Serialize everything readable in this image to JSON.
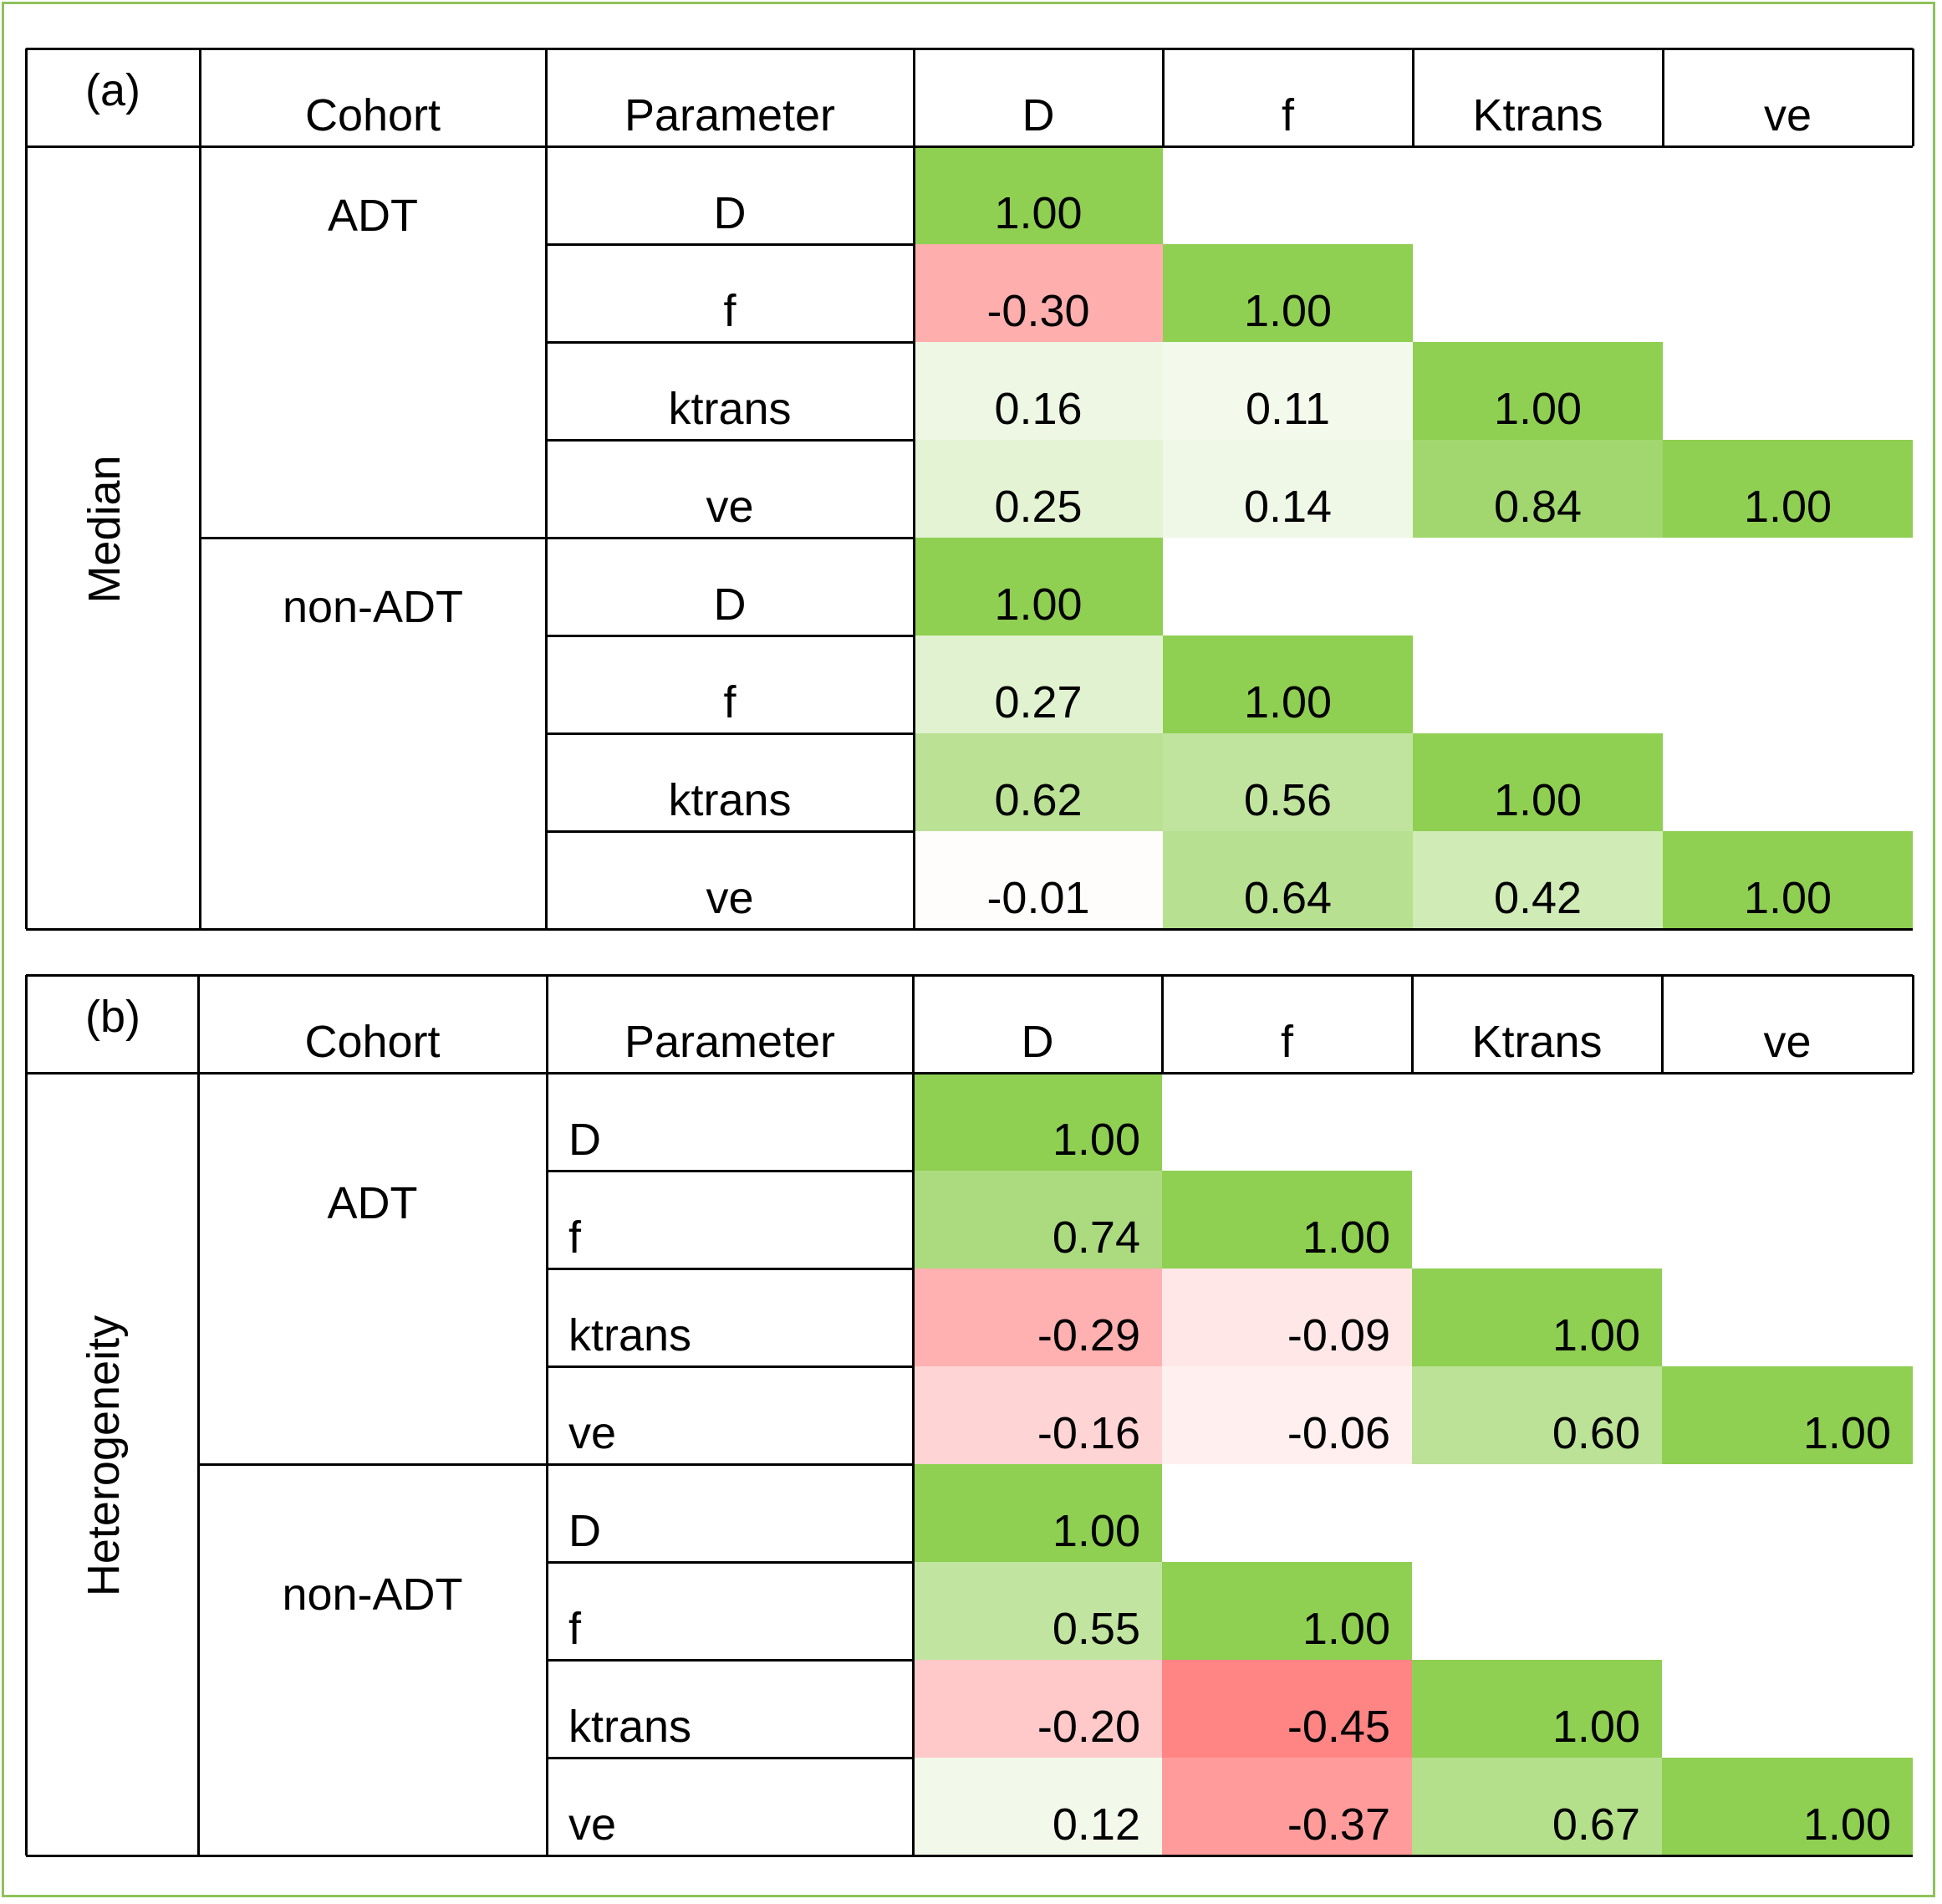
{
  "chart_data": [
    {
      "type": "table",
      "label": "(a)",
      "row_group": "Median",
      "header": {
        "cohort": "Cohort",
        "parameter": "Parameter",
        "columns": [
          "D",
          "f",
          "Ktrans",
          "ve"
        ]
      },
      "cohorts": [
        {
          "name": "ADT",
          "rows": [
            {
              "parameter": "D",
              "values": [
                "1.00"
              ]
            },
            {
              "parameter": "f",
              "values": [
                "-0.30",
                "1.00"
              ]
            },
            {
              "parameter": "ktrans",
              "values": [
                "0.16",
                "0.11",
                "1.00"
              ]
            },
            {
              "parameter": "ve",
              "values": [
                "0.25",
                "0.14",
                "0.84",
                "1.00"
              ]
            }
          ]
        },
        {
          "name": "non-ADT",
          "rows": [
            {
              "parameter": "D",
              "values": [
                "1.00"
              ]
            },
            {
              "parameter": "f",
              "values": [
                "0.27",
                "1.00"
              ]
            },
            {
              "parameter": "ktrans",
              "values": [
                "0.62",
                "0.56",
                "1.00"
              ]
            },
            {
              "parameter": "ve",
              "values": [
                "-0.01",
                "0.64",
                "0.42",
                "1.00"
              ]
            }
          ]
        }
      ]
    },
    {
      "type": "table",
      "label": "(b)",
      "row_group": "Heterogeneity",
      "header": {
        "cohort": "Cohort",
        "parameter": "Parameter",
        "columns": [
          "D",
          "f",
          "Ktrans",
          "ve"
        ]
      },
      "cohorts": [
        {
          "name": "ADT",
          "rows": [
            {
              "parameter": "D",
              "values": [
                "1.00"
              ]
            },
            {
              "parameter": "f",
              "values": [
                "0.74",
                "1.00"
              ]
            },
            {
              "parameter": "ktrans",
              "values": [
                "-0.29",
                "-0.09",
                "1.00"
              ]
            },
            {
              "parameter": "ve",
              "values": [
                "-0.16",
                "-0.06",
                "0.60",
                "1.00"
              ]
            }
          ]
        },
        {
          "name": "non-ADT",
          "rows": [
            {
              "parameter": "D",
              "values": [
                "1.00"
              ]
            },
            {
              "parameter": "f",
              "values": [
                "0.55",
                "1.00"
              ]
            },
            {
              "parameter": "ktrans",
              "values": [
                "-0.20",
                "-0.45",
                "1.00"
              ]
            },
            {
              "parameter": "ve",
              "values": [
                "0.12",
                "-0.37",
                "0.67",
                "1.00"
              ]
            }
          ]
        }
      ]
    }
  ],
  "colors": {
    "positive": "#8fcf52",
    "negative": "#ff8585",
    "neutral": "#ffffff",
    "frame": "#8fc15a"
  }
}
